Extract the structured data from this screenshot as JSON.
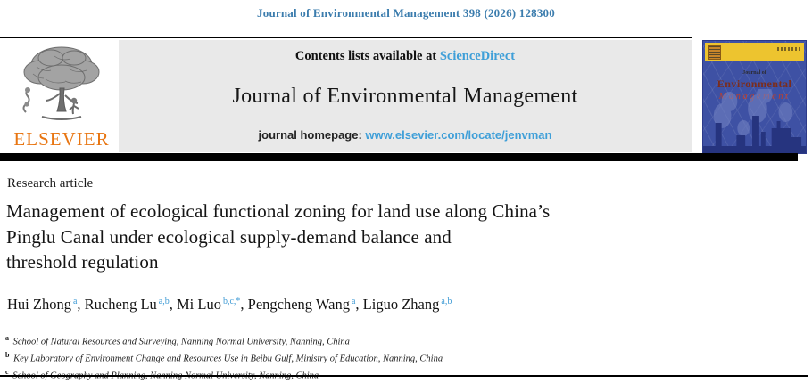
{
  "header": {
    "citation": "Journal of Environmental Management 398 (2026) 128300"
  },
  "banner": {
    "contents_prefix": "Contents lists available at ",
    "sciencedirect_label": "ScienceDirect",
    "journal_title": "Journal of Environmental Management",
    "homepage_prefix": "journal homepage: ",
    "homepage_url": "www.elsevier.com/locate/jenvman"
  },
  "elsevier": {
    "wordmark": "ELSEVIER"
  },
  "cover": {
    "title_line1": "Journal of",
    "title_line2": "Environmental",
    "title_line3": "Management"
  },
  "article": {
    "type_label": "Research article",
    "title_lines": [
      "Management of ecological functional zoning for land use along China’s",
      "Pinglu Canal under ecological supply-demand balance and",
      "threshold regulation"
    ],
    "authors": [
      {
        "name": "Hui Zhong",
        "sup": "a"
      },
      {
        "name": "Rucheng Lu",
        "sup": "a,b"
      },
      {
        "name": "Mi Luo",
        "sup": "b,c,*"
      },
      {
        "name": "Pengcheng Wang",
        "sup": "a"
      },
      {
        "name": "Liguo Zhang",
        "sup": "a,b"
      }
    ],
    "affiliations": [
      {
        "sup": "a",
        "text": "School of Natural Resources and Surveying, Nanning Normal University, Nanning, China"
      },
      {
        "sup": "b",
        "text": "Key Laboratory of Environment Change and Resources Use in Beibu Gulf, Ministry of Education, Nanning, China"
      },
      {
        "sup": "c",
        "text": "School of Geography and Planning, Nanning Normal University, Nanning, China"
      }
    ]
  },
  "colors": {
    "citation_blue": "#3b7cad",
    "link_blue": "#3f9fd8",
    "superscript_blue": "#3f9bd5",
    "elsevier_orange": "#e87511",
    "banner_gray": "#e9e9e9",
    "cover_blue": "#3e51a4",
    "cover_yellow": "#edc42f",
    "cover_title_dark_red": "#7c2d1c",
    "cover_title_red": "#c03f2a",
    "rule_black": "#000000"
  }
}
